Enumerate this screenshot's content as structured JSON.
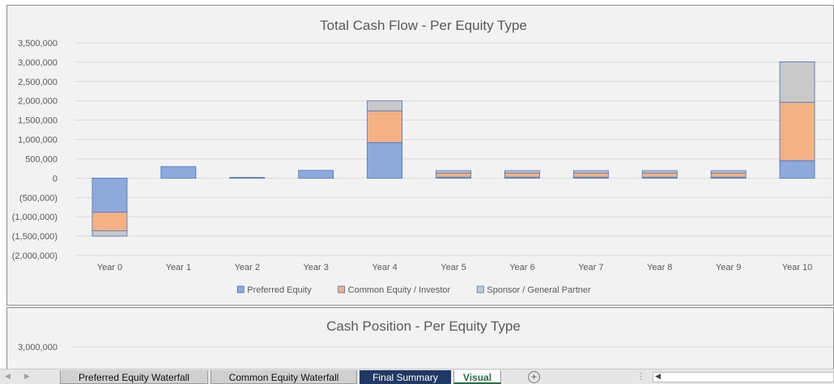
{
  "chart_data": [
    {
      "type": "bar",
      "stacked": true,
      "title": "Total Cash Flow - Per Equity Type",
      "categories": [
        "Year 0",
        "Year 1",
        "Year 2",
        "Year 3",
        "Year 4",
        "Year 5",
        "Year 6",
        "Year 7",
        "Year 8",
        "Year 9",
        "Year 10"
      ],
      "series": [
        {
          "name": "Preferred Equity",
          "color": "#8ea9db",
          "values": [
            -880000,
            300000,
            20000,
            200000,
            920000,
            25000,
            25000,
            25000,
            25000,
            25000,
            450000
          ]
        },
        {
          "name": "Common Equity / Investor",
          "color": "#f4b183",
          "values": [
            -480000,
            0,
            0,
            0,
            820000,
            110000,
            110000,
            110000,
            110000,
            110000,
            1510000
          ]
        },
        {
          "name": "Sponsor / General Partner",
          "color": "#c9c9c9",
          "values": [
            -140000,
            0,
            0,
            0,
            260000,
            60000,
            60000,
            60000,
            60000,
            60000,
            1050000
          ]
        }
      ],
      "y_ticks": [
        "3,500,000",
        "3,000,000",
        "2,500,000",
        "2,000,000",
        "1,500,000",
        "1,000,000",
        "500,000",
        "0",
        "(500,000)",
        "(1,000,000)",
        "(1,500,000)",
        "(2,000,000)"
      ],
      "ylim": [
        -2000000,
        3500000
      ],
      "grid": true,
      "legend_position": "bottom"
    },
    {
      "type": "bar",
      "stacked": true,
      "title": "Cash Position - Per Equity Type",
      "y_ticks": [
        "3,000,000"
      ],
      "grid": true
    }
  ],
  "sheet_tabs": [
    {
      "label": "Preferred Equity Waterfall",
      "state": "normal"
    },
    {
      "label": "Common Equity Waterfall",
      "state": "normal"
    },
    {
      "label": "Final Summary",
      "state": "dark"
    },
    {
      "label": "Visual",
      "state": "active"
    }
  ],
  "icons": {
    "prev_sheet": "chevron-left-icon",
    "next_sheet": "chevron-right-icon",
    "add_sheet": "plus-circle-icon",
    "scroll_left": "scroll-left-arrow-icon"
  }
}
